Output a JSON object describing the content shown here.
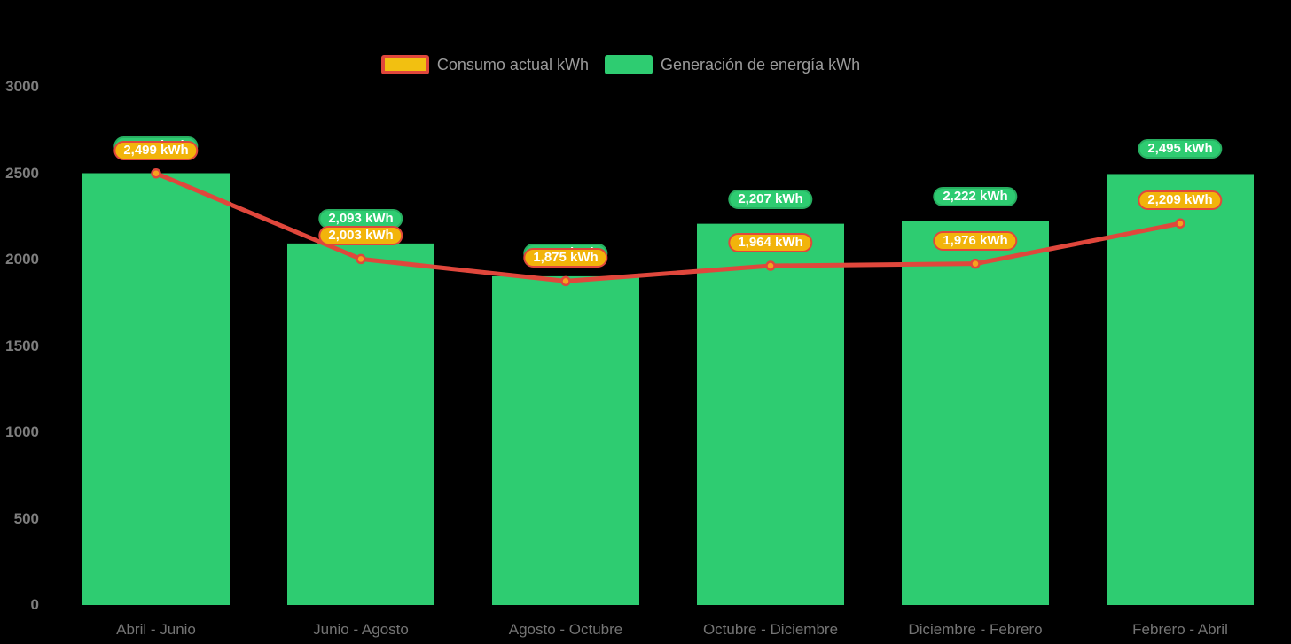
{
  "colors": {
    "background": "#000000",
    "bar_green": "#2ecc71",
    "badge_green_border": "#27ae60",
    "line_red": "#e0473c",
    "badge_orange": "#f2b40b",
    "marker_orange": "#f5a31d",
    "axis_text": "#7e7e7e",
    "legend_text": "#9b9b9b"
  },
  "legend": {
    "items": [
      {
        "label": "Consumo actual kWh",
        "swatch": "orange-red-border"
      },
      {
        "label": "Generación de energía kWh",
        "swatch": "green"
      }
    ]
  },
  "chart_data": {
    "type": "bar+line",
    "title": "",
    "xlabel": "",
    "ylabel": "",
    "categories": [
      "Abril - Junio",
      "Junio - Agosto",
      "Agosto - Octubre",
      "Octubre - Diciembre",
      "Diciembre - Febrero",
      "Febrero - Abril"
    ],
    "series": [
      {
        "name": "Consumo actual kWh",
        "type": "line",
        "color": "#e0473c",
        "marker_color": "#f5a31d",
        "values": [
          2499,
          2003,
          1875,
          1964,
          1976,
          2209
        ],
        "labels": [
          "2,499 kWh",
          "2,003 kWh",
          "1,875 kWh",
          "1,964 kWh",
          "1,976 kWh",
          "2,209 kWh"
        ]
      },
      {
        "name": "Generación de energía kWh",
        "type": "bar",
        "color": "#2ecc71",
        "values": [
          2500,
          2093,
          1903,
          2207,
          2222,
          2495
        ],
        "labels": [
          "2,500 kWh",
          "2,093 kWh",
          "1,903 kWh",
          "2,207 kWh",
          "2,222 kWh",
          "2,495 kWh"
        ],
        "labels_occluded_by_line_labels": [
          true,
          false,
          true,
          false,
          false,
          false
        ]
      }
    ],
    "ylim": [
      0,
      3000
    ],
    "yticks": [
      0,
      500,
      1000,
      1500,
      2000,
      2500,
      3000
    ],
    "grid": false,
    "legend_position": "top"
  }
}
